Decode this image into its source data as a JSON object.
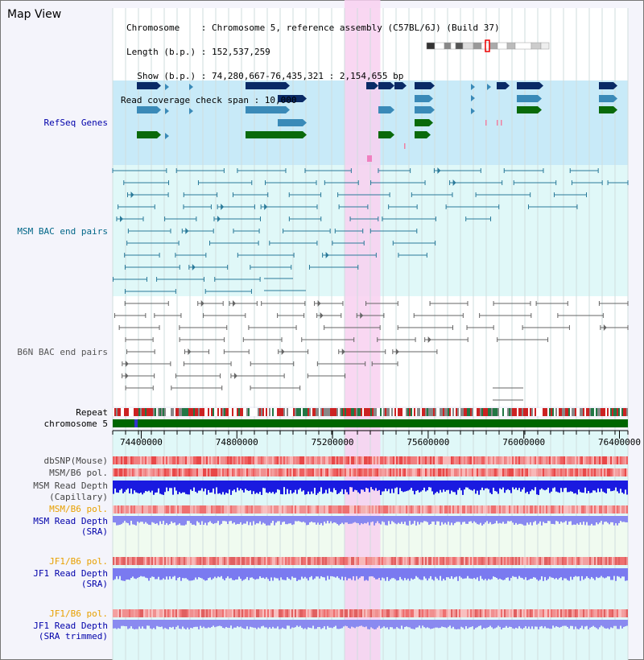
{
  "title": "Map View",
  "info": {
    "chromosome": "Chromosome    : Chromosome 5, reference assembly (C57BL/6J) (Build 37)",
    "length": "Length (b.p.) : 152,537,259",
    "show": "  Show (b.p.) : 74,280,667-76,435,321 : 2,154,655 bp",
    "coverage": "Read coverage check span : 10,000"
  },
  "tracks": [
    {
      "key": "refseq",
      "label": "RefSeq Genes",
      "color": "#0000aa"
    },
    {
      "key": "msm_bac",
      "label": "MSM BAC end pairs",
      "color": "#006688"
    },
    {
      "key": "b6n_bac",
      "label": "B6N BAC end pairs",
      "color": "#555555"
    },
    {
      "key": "repeat",
      "label": "Repeat",
      "color": "#000000"
    },
    {
      "key": "chromosome",
      "label": "chromosome 5",
      "color": "#000000"
    },
    {
      "key": "dbsnp",
      "label": "dbSNP(Mouse)",
      "color": "#444444"
    },
    {
      "key": "msm_b6_pol1",
      "label": "MSM/B6 pol.",
      "color": "#444444"
    },
    {
      "key": "msm_depth_cap",
      "label": "MSM Read Depth",
      "color": "#444444"
    },
    {
      "key": "msm_depth_cap_sub",
      "label": "(Capillary)",
      "color": "#444444"
    },
    {
      "key": "msm_b6_pol2",
      "label": "MSM/B6 pol.",
      "color": "#e8a000"
    },
    {
      "key": "msm_depth_sra",
      "label": "MSM Read Depth",
      "color": "#0000aa"
    },
    {
      "key": "msm_depth_sra_sub",
      "label": "(SRA)",
      "color": "#0000aa"
    },
    {
      "key": "jf1_pol1",
      "label": "JF1/B6 pol.",
      "color": "#e8a000"
    },
    {
      "key": "jf1_depth_sra",
      "label": "JF1 Read Depth",
      "color": "#0000aa"
    },
    {
      "key": "jf1_depth_sra_sub",
      "label": "(SRA)",
      "color": "#0000aa"
    },
    {
      "key": "jf1_pol2",
      "label": "JF1/B6 pol.",
      "color": "#e8a000"
    },
    {
      "key": "jf1_depth_trim",
      "label": "JF1 Read Depth",
      "color": "#0000aa"
    },
    {
      "key": "jf1_depth_trim_sub",
      "label": "(SRA trimmed)",
      "color": "#0000aa"
    }
  ],
  "axis": {
    "start": 74280667,
    "end": 76435321,
    "tick_labels": [
      "74400000",
      "74800000",
      "75200000",
      "75600000",
      "76000000",
      "76400000"
    ]
  },
  "highlight": {
    "start": 75250000,
    "end": 75400000
  },
  "colors": {
    "refseq_bg": "#c8eaf8",
    "bac_bg": "#e0f8f8",
    "gene_dark": "#0a2a66",
    "gene_mid": "#3a8ab8",
    "gene_green": "#0a6a0a",
    "highlight": "#f8d0f0",
    "chrom_green": "#006600"
  }
}
